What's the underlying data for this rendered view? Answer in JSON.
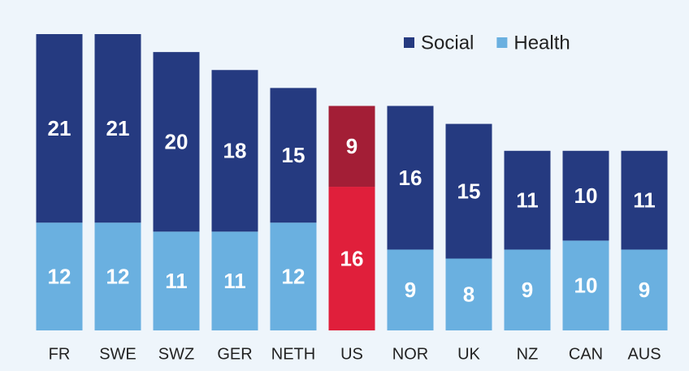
{
  "chart_data": {
    "type": "stacked_bar",
    "categories": [
      "FR",
      "SWE",
      "SWZ",
      "GER",
      "NETH",
      "US",
      "NOR",
      "UK",
      "NZ",
      "CAN",
      "AUS"
    ],
    "series": [
      {
        "name": "Health",
        "color": "#6ab0e0",
        "colors": [
          "#6ab0e0",
          "#6ab0e0",
          "#6ab0e0",
          "#6ab0e0",
          "#6ab0e0",
          "#e01f3b",
          "#6ab0e0",
          "#6ab0e0",
          "#6ab0e0",
          "#6ab0e0",
          "#6ab0e0"
        ],
        "values": [
          12,
          12,
          11,
          11,
          12,
          16,
          9,
          8,
          9,
          10,
          9
        ]
      },
      {
        "name": "Social",
        "color": "#253a80",
        "colors": [
          "#253a80",
          "#253a80",
          "#253a80",
          "#253a80",
          "#253a80",
          "#a31e36",
          "#253a80",
          "#253a80",
          "#253a80",
          "#253a80",
          "#253a80"
        ],
        "values": [
          21,
          21,
          20,
          18,
          15,
          9,
          16,
          15,
          11,
          10,
          11
        ]
      }
    ],
    "legend": "top-right"
  }
}
